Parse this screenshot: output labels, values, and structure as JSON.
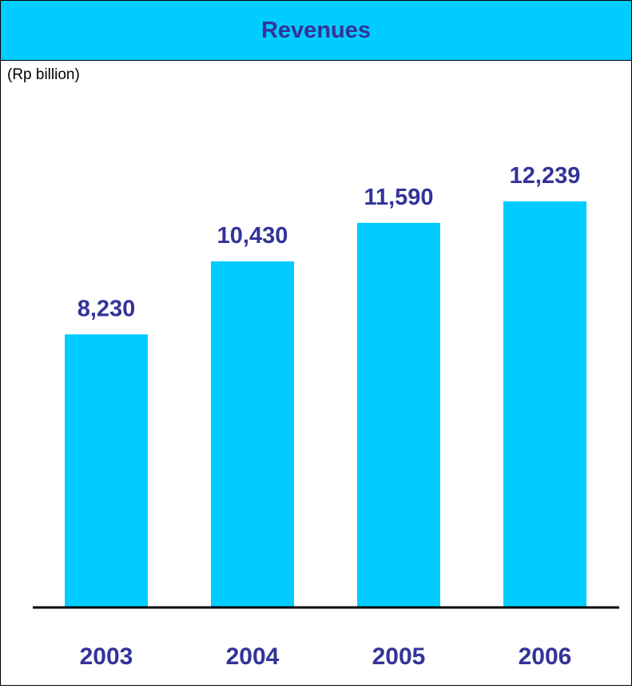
{
  "chart_data": {
    "type": "bar",
    "title": "Revenues",
    "unit_label": "(Rp billion)",
    "categories": [
      "2003",
      "2004",
      "2005",
      "2006"
    ],
    "values": [
      8230,
      10430,
      11590,
      12239
    ],
    "value_labels": [
      "8,230",
      "10,430",
      "11,590",
      "12,239"
    ],
    "xlabel": "",
    "ylabel": "",
    "ylim": [
      0,
      17800
    ],
    "grid": false,
    "legend": "none",
    "colors": {
      "bar": "#00ccff",
      "title_bar": "#00ccff",
      "label_text": "#333399",
      "axis_line": "#000000"
    }
  }
}
